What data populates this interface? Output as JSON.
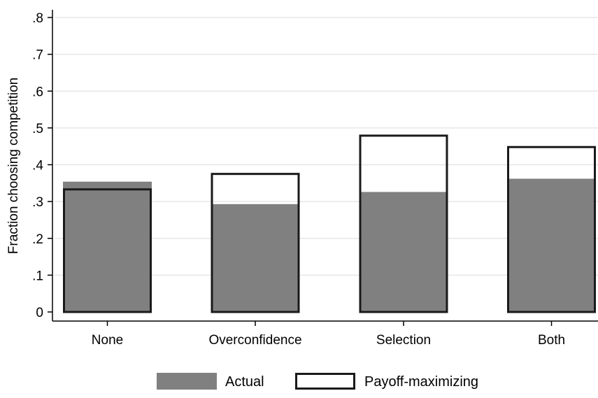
{
  "chart_data": {
    "type": "bar",
    "categories": [
      "None",
      "Overconfidence",
      "Selection",
      "Both"
    ],
    "series": [
      {
        "name": "Actual",
        "values": [
          0.354,
          0.293,
          0.326,
          0.362
        ],
        "style": "filled",
        "color": "#808080"
      },
      {
        "name": "Payoff-maximizing",
        "values": [
          0.333,
          0.375,
          0.479,
          0.448
        ],
        "style": "outline",
        "color": "#1a1a1a"
      }
    ],
    "ylabel": "Fraction choosing competition",
    "ylim": [
      0,
      0.8
    ],
    "yticks": [
      {
        "value": 0,
        "label": "0"
      },
      {
        "value": 0.1,
        "label": ".1"
      },
      {
        "value": 0.2,
        "label": ".2"
      },
      {
        "value": 0.3,
        "label": ".3"
      },
      {
        "value": 0.4,
        "label": ".4"
      },
      {
        "value": 0.5,
        "label": ".5"
      },
      {
        "value": 0.6,
        "label": ".6"
      },
      {
        "value": 0.7,
        "label": ".7"
      },
      {
        "value": 0.8,
        "label": ".8"
      }
    ],
    "grid": true,
    "gridlines": "horizontal",
    "legend_position": "bottom"
  }
}
